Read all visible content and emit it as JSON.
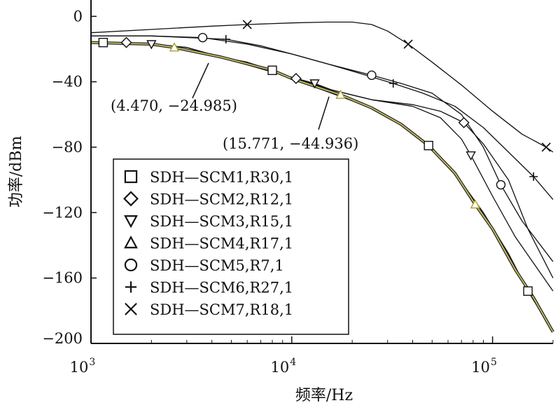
{
  "chart_data": {
    "type": "line",
    "xscale": "log",
    "xlim": [
      1000,
      200000
    ],
    "ylim": [
      -200,
      10
    ],
    "xlabel": "频率/Hz",
    "ylabel": "功率/dBm",
    "grid": false,
    "legend_position": "lower-left",
    "xticks": [
      {
        "value": 1000,
        "base": "10",
        "exp": "3"
      },
      {
        "value": 10000,
        "base": "10",
        "exp": "4"
      },
      {
        "value": 100000,
        "base": "10",
        "exp": "5"
      }
    ],
    "yticks": [
      {
        "value": 0,
        "label": "0"
      },
      {
        "value": -40,
        "label": "−40"
      },
      {
        "value": -80,
        "label": "−80"
      },
      {
        "value": -120,
        "label": "−120"
      },
      {
        "value": -160,
        "label": "−160"
      },
      {
        "value": -200,
        "label": "−200"
      }
    ],
    "series": [
      {
        "name": "SDH—SCM1,R30,1",
        "marker": "square",
        "color": "#111111",
        "x": [
          1000,
          1150,
          2000,
          3000,
          4470,
          6000,
          8000,
          10000,
          15771,
          25000,
          35000,
          48000,
          65000,
          90000,
          120000,
          150000,
          200000
        ],
        "y": [
          -16,
          -16,
          -17,
          -19,
          -24.985,
          -28,
          -33,
          -38,
          -47,
          -56,
          -66,
          -79,
          -96,
          -120,
          -145,
          -168,
          -193
        ],
        "markers_at": [
          1150,
          8000,
          48000,
          150000
        ]
      },
      {
        "name": "SDH—SCM2,R12,1",
        "marker": "diamond",
        "color": "#111111",
        "x": [
          1000,
          1500,
          2500,
          4470,
          8000,
          10500,
          15771,
          25000,
          40000,
          55000,
          72000,
          90000,
          120000,
          150000,
          200000
        ],
        "y": [
          -16,
          -16,
          -18,
          -25,
          -34,
          -38,
          -44.936,
          -51,
          -54,
          -58,
          -65,
          -78,
          -100,
          -130,
          -160
        ],
        "markers_at": [
          1500,
          10500,
          72000
        ]
      },
      {
        "name": "SDH—SCM3,R15,1",
        "marker": "triangle-down",
        "color": "#111111",
        "x": [
          1000,
          2000,
          3000,
          4470,
          8000,
          13000,
          15771,
          25000,
          40000,
          55000,
          70000,
          78000,
          100000,
          130000,
          200000
        ],
        "y": [
          -16,
          -17,
          -19,
          -25,
          -34,
          -41,
          -44.936,
          -51,
          -55,
          -62,
          -75,
          -85,
          -110,
          -135,
          -168
        ],
        "markers_at": [
          2000,
          13000,
          78000
        ]
      },
      {
        "name": "SDH—SCM4,R17,1",
        "marker": "triangle-up",
        "color": "#c8c060",
        "x": [
          1000,
          2000,
          2600,
          4470,
          8000,
          10000,
          17500,
          25000,
          35000,
          48000,
          65000,
          82000,
          100000,
          130000,
          160000,
          200000
        ],
        "y": [
          -16,
          -17,
          -19,
          -24.985,
          -33,
          -38,
          -48,
          -56,
          -66,
          -79,
          -96,
          -115,
          -130,
          -155,
          -172,
          -193
        ],
        "markers_at": [
          2600,
          17500,
          82000
        ]
      },
      {
        "name": "SDH—SCM5,R7,1",
        "marker": "circle",
        "color": "#111111",
        "x": [
          1000,
          2000,
          3600,
          6000,
          10000,
          15000,
          25000,
          35000,
          50000,
          70000,
          90000,
          110000,
          140000,
          200000
        ],
        "y": [
          -12,
          -12,
          -13,
          -17,
          -23,
          -29,
          -36,
          -41,
          -47,
          -60,
          -80,
          -103,
          -125,
          -150
        ],
        "markers_at": [
          3600,
          25000,
          110000
        ]
      },
      {
        "name": "SDH—SCM6,R27,1",
        "marker": "plus",
        "color": "#111111",
        "x": [
          1000,
          2000,
          4700,
          7000,
          10000,
          15000,
          22000,
          32000,
          45000,
          65000,
          90000,
          120000,
          160000,
          200000
        ],
        "y": [
          -12,
          -12,
          -14,
          -18,
          -23,
          -29,
          -35,
          -41,
          -47,
          -55,
          -68,
          -83,
          -98,
          -112
        ],
        "markers_at": [
          4700,
          32000,
          160000
        ]
      },
      {
        "name": "SDH—SCM7,R18,1",
        "marker": "x",
        "color": "#111111",
        "x": [
          1000,
          2000,
          4000,
          6000,
          10000,
          15000,
          20000,
          25000,
          30000,
          38000,
          50000,
          70000,
          100000,
          140000,
          185000,
          200000
        ],
        "y": [
          -10,
          -8,
          -6,
          -5,
          -4,
          -3.5,
          -3.5,
          -5,
          -9,
          -17,
          -28,
          -42,
          -58,
          -72,
          -80,
          -83
        ],
        "markers_at": [
          6000,
          38000,
          185000
        ]
      }
    ],
    "annotations": [
      {
        "text": "(4.470, −24.985)",
        "x": 4470,
        "y": -24.985
      },
      {
        "text": "(15.771, −44.936)",
        "x": 15771,
        "y": -44.936
      }
    ]
  }
}
